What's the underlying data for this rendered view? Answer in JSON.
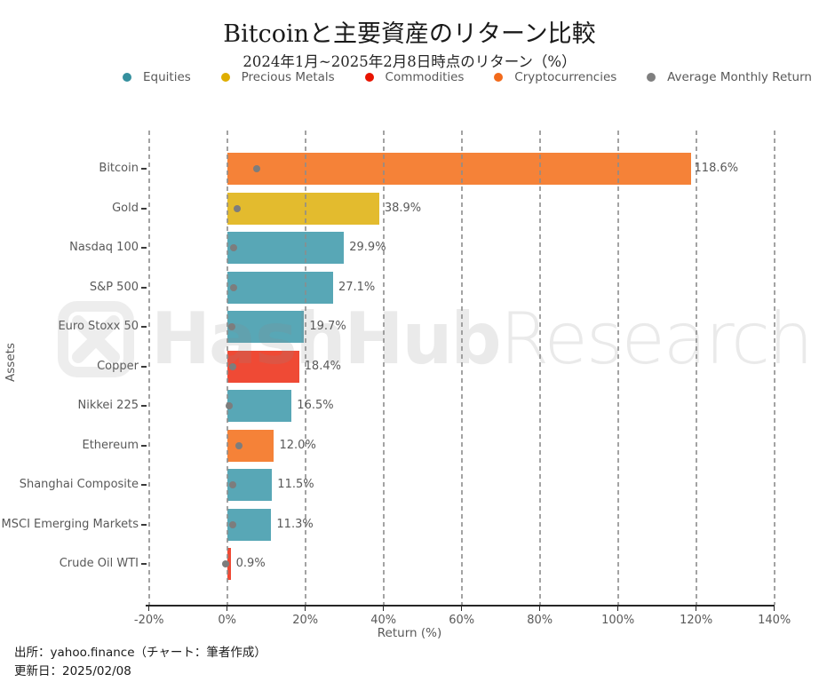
{
  "title": "Bitcoinと主要資産のリターン比較",
  "subtitle": "2024年1月~2025年2月8日時点のリターン（%）",
  "legend": [
    {
      "label": "Equities",
      "color": "#35909e"
    },
    {
      "label": "Precious Metals",
      "color": "#dfae00"
    },
    {
      "label": "Commodities",
      "color": "#e81400"
    },
    {
      "label": "Cryptocurrencies",
      "color": "#f26a1b"
    },
    {
      "label": "Average Monthly Return",
      "color": "#7f7f7f"
    }
  ],
  "watermark": {
    "logo": "hashhub-logo",
    "text_bold": "HashHub",
    "text_light": "Research"
  },
  "footer": {
    "source": "出所：yahoo.finance（チャート：筆者作成）",
    "updated": "更新日：2025/02/08"
  },
  "chart_data": {
    "type": "bar",
    "orientation": "horizontal",
    "title": "Bitcoinと主要資産のリターン比較",
    "subtitle": "2024年1月~2025年2月8日時点のリターン（%）",
    "xlabel": "Return (%)",
    "ylabel": "Assets",
    "xlim": [
      -21,
      140
    ],
    "xticks": [
      -20,
      0,
      20,
      40,
      60,
      80,
      100,
      120,
      140
    ],
    "xtick_suffix": "%",
    "grid": "vertical-dashed",
    "legend_position": "top",
    "categories": [
      "Bitcoin",
      "Gold",
      "Nasdaq 100",
      "S&P 500",
      "Euro Stoxx 50",
      "Copper",
      "Nikkei 225",
      "Ethereum",
      "Shanghai Composite",
      "MSCI Emerging Markets",
      "Crude Oil WTI"
    ],
    "category_groups": [
      "Cryptocurrencies",
      "Precious Metals",
      "Equities",
      "Equities",
      "Equities",
      "Commodities",
      "Equities",
      "Cryptocurrencies",
      "Equities",
      "Equities",
      "Commodities"
    ],
    "series": [
      {
        "name": "Return",
        "values": [
          118.6,
          38.9,
          29.9,
          27.1,
          19.7,
          18.4,
          16.5,
          12.0,
          11.5,
          11.3,
          0.9
        ]
      },
      {
        "name": "Average Monthly Return",
        "values": [
          7.6,
          2.6,
          1.7,
          1.7,
          1.1,
          1.4,
          0.5,
          3.1,
          1.5,
          1.4,
          -0.4
        ]
      }
    ],
    "value_labels": [
      "118.6%",
      "38.9%",
      "29.9%",
      "27.1%",
      "19.7%",
      "18.4%",
      "16.5%",
      "12.0%",
      "11.5%",
      "11.3%",
      "0.9%"
    ],
    "group_bar_colors": {
      "Equities": "#58a7b6",
      "Precious Metals": "#e3bb2e",
      "Commodities": "#ef4a35",
      "Cryptocurrencies": "#f58238"
    }
  }
}
